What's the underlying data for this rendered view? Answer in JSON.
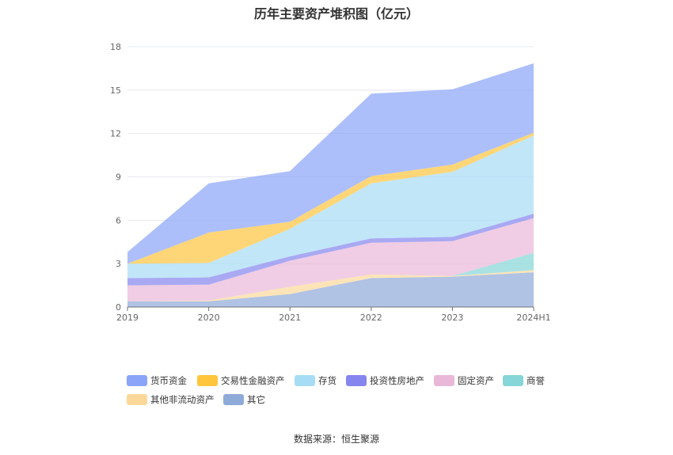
{
  "title": "历年主要资产堆积图（亿元）",
  "source": "数据来源：恒生聚源",
  "chart_data": {
    "type": "area",
    "stacked": true,
    "categories": [
      "2019",
      "2020",
      "2021",
      "2022",
      "2023",
      "2024H1"
    ],
    "ylim": [
      0,
      18
    ],
    "yticks": [
      0,
      3,
      6,
      9,
      12,
      15,
      18
    ],
    "grid": true,
    "legend_position": "bottom",
    "series": [
      {
        "name": "其它",
        "color": "#8eaad8",
        "values": [
          0.4,
          0.4,
          0.9,
          2.0,
          2.1,
          2.4
        ]
      },
      {
        "name": "其他非流动资产",
        "color": "#fbd89a",
        "values": [
          0.0,
          0.05,
          0.5,
          0.25,
          0.05,
          0.15
        ]
      },
      {
        "name": "商誉",
        "color": "#86d5d8",
        "values": [
          0.0,
          0.0,
          0.0,
          0.0,
          0.0,
          1.2
        ]
      },
      {
        "name": "固定资产",
        "color": "#e9b8d8",
        "values": [
          1.1,
          1.1,
          1.8,
          2.2,
          2.4,
          2.4
        ]
      },
      {
        "name": "投资性房地产",
        "color": "#8585ee",
        "values": [
          0.5,
          0.5,
          0.3,
          0.3,
          0.3,
          0.3
        ]
      },
      {
        "name": "存货",
        "color": "#a7dcf5",
        "values": [
          1.0,
          1.0,
          1.9,
          3.8,
          4.5,
          5.4
        ]
      },
      {
        "name": "交易性金融资产",
        "color": "#ffc53d",
        "values": [
          0.0,
          2.1,
          0.5,
          0.5,
          0.5,
          0.2
        ]
      },
      {
        "name": "货币资金",
        "color": "#8aa4f8",
        "values": [
          0.8,
          3.4,
          3.5,
          5.7,
          5.2,
          4.8
        ]
      }
    ],
    "legend_order": [
      "货币资金",
      "交易性金融资产",
      "存货",
      "投资性房地产",
      "固定资产",
      "商誉",
      "其他非流动资产",
      "其它"
    ]
  }
}
